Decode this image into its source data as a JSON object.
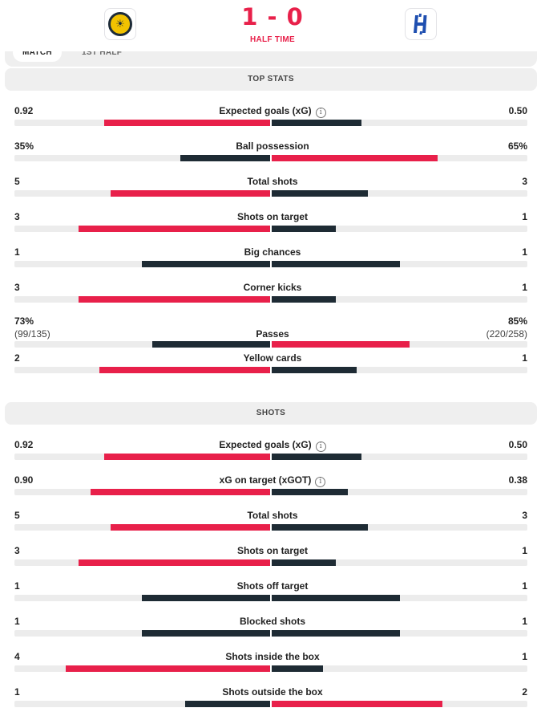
{
  "header": {
    "home_logo_icon": "al-khaleej-crest-icon",
    "away_logo_icon": "al-hilal-crest-icon",
    "home_crest_glyph": "☀",
    "away_crest_glyph": "H",
    "score": "1 - 0",
    "status": "HALF TIME",
    "accent_color": "#e8204a",
    "dark_color": "#1e2b34"
  },
  "tabs": [
    {
      "label": "MATCH"
    },
    {
      "label": "1ST HALF"
    }
  ],
  "info_glyph": "i",
  "sections": [
    {
      "title": "TOP STATS",
      "stats": [
        {
          "label": "Expected goals (xG)",
          "info": true,
          "home": "0.92",
          "away": "0.50",
          "home_val": 0.92,
          "away_val": 0.5,
          "leader": "home"
        },
        {
          "label": "Ball possession",
          "home": "35%",
          "away": "65%",
          "home_val": 35,
          "away_val": 65,
          "leader": "away"
        },
        {
          "label": "Total shots",
          "home": "5",
          "away": "3",
          "home_val": 5,
          "away_val": 3,
          "leader": "home"
        },
        {
          "label": "Shots on target",
          "home": "3",
          "away": "1",
          "home_val": 3,
          "away_val": 1,
          "leader": "home"
        },
        {
          "label": "Big chances",
          "home": "1",
          "away": "1",
          "home_val": 1,
          "away_val": 1,
          "leader": "none"
        },
        {
          "label": "Corner kicks",
          "home": "3",
          "away": "1",
          "home_val": 3,
          "away_val": 1,
          "leader": "home"
        },
        {
          "label": "Passes",
          "home": "73%",
          "away": "85%",
          "home_sub": "(99/135)",
          "away_sub": "(220/258)",
          "home_val": 73,
          "away_val": 85,
          "leader": "away"
        },
        {
          "label": "Yellow cards",
          "home": "2",
          "away": "1",
          "home_val": 2,
          "away_val": 1,
          "leader": "home"
        }
      ]
    },
    {
      "title": "SHOTS",
      "stats": [
        {
          "label": "Expected goals (xG)",
          "info": true,
          "home": "0.92",
          "away": "0.50",
          "home_val": 0.92,
          "away_val": 0.5,
          "leader": "home"
        },
        {
          "label": "xG on target (xGOT)",
          "info": true,
          "home": "0.90",
          "away": "0.38",
          "home_val": 0.9,
          "away_val": 0.38,
          "leader": "home"
        },
        {
          "label": "Total shots",
          "home": "5",
          "away": "3",
          "home_val": 5,
          "away_val": 3,
          "leader": "home"
        },
        {
          "label": "Shots on target",
          "home": "3",
          "away": "1",
          "home_val": 3,
          "away_val": 1,
          "leader": "home"
        },
        {
          "label": "Shots off target",
          "home": "1",
          "away": "1",
          "home_val": 1,
          "away_val": 1,
          "leader": "none"
        },
        {
          "label": "Blocked shots",
          "home": "1",
          "away": "1",
          "home_val": 1,
          "away_val": 1,
          "leader": "none"
        },
        {
          "label": "Shots inside the box",
          "home": "4",
          "away": "1",
          "home_val": 4,
          "away_val": 1,
          "leader": "home"
        },
        {
          "label": "Shots outside the box",
          "home": "1",
          "away": "2",
          "home_val": 1,
          "away_val": 2,
          "leader": "away"
        }
      ]
    }
  ]
}
